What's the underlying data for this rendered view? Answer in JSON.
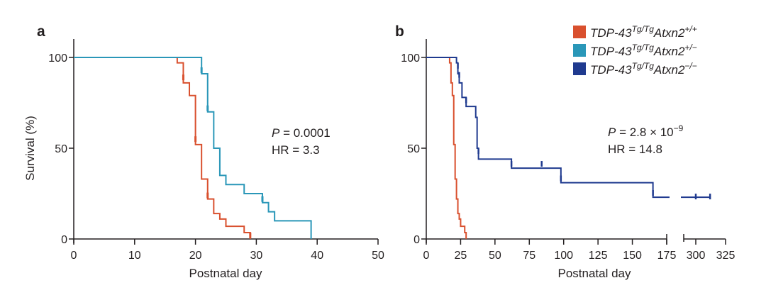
{
  "colors": {
    "wt": "#d9502e",
    "het": "#2a97b8",
    "ko": "#1f3a8f",
    "axis": "#231f20"
  },
  "legend": [
    {
      "key": "wt",
      "base": "TDP-43",
      "sup1": "Tg/Tg",
      "gene": "Atxn2",
      "sup2": "+/+"
    },
    {
      "key": "het",
      "base": "TDP-43",
      "sup1": "Tg/Tg",
      "gene": "Atxn2",
      "sup2": "+/−"
    },
    {
      "key": "ko",
      "base": "TDP-43",
      "sup1": "Tg/Tg",
      "gene": "Atxn2",
      "sup2": "−/−"
    }
  ],
  "chart_data": [
    {
      "panel": "a",
      "type": "line",
      "step": true,
      "title": "",
      "xlabel": "Postnatal day",
      "ylabel": "Survival (%)",
      "xlim": [
        0,
        50
      ],
      "ylim": [
        0,
        100
      ],
      "xticks": [
        0,
        10,
        20,
        30,
        40,
        50
      ],
      "yticks": [
        0,
        50,
        100
      ],
      "grid": false,
      "annotation": {
        "p_label": "P",
        "p_value": " = 0.0001",
        "hr": "HR = 3.3"
      },
      "series": [
        {
          "name": "TDP-43 Tg/Tg Atxn2 +/+",
          "key": "wt",
          "x": [
            0,
            17,
            18,
            19,
            20,
            21,
            22,
            23,
            24,
            25,
            28,
            29
          ],
          "y": [
            100,
            97,
            86,
            79,
            52,
            33,
            22,
            14,
            11,
            7,
            3.5,
            0
          ],
          "censored": [
            [
              18,
              89
            ],
            [
              20,
              55
            ],
            [
              22,
              24
            ],
            [
              29,
              2
            ]
          ]
        },
        {
          "name": "TDP-43 Tg/Tg Atxn2 +/−",
          "key": "het",
          "x": [
            0,
            21,
            22,
            23,
            24,
            25,
            28,
            31,
            32,
            33,
            39
          ],
          "y": [
            100,
            91,
            70,
            50,
            35,
            30,
            25,
            20,
            15,
            10,
            0
          ],
          "censored": [
            [
              21,
              93
            ],
            [
              22,
              72
            ],
            [
              31,
              22
            ]
          ]
        }
      ]
    },
    {
      "panel": "b",
      "type": "line",
      "step": true,
      "title": "",
      "xlabel": "Postnatal day",
      "ylabel": "",
      "xlim": [
        0,
        325
      ],
      "axis_break": [
        178,
        290
      ],
      "ylim": [
        0,
        100
      ],
      "xticks": [
        0,
        25,
        50,
        75,
        100,
        125,
        150,
        175,
        300,
        325
      ],
      "yticks": [
        0,
        50,
        100
      ],
      "grid": false,
      "annotation": {
        "p_label": "P",
        "p_value": " = 2.8 × 10",
        "p_exp": "−9",
        "hr": "HR = 14.8"
      },
      "series": [
        {
          "name": "TDP-43 Tg/Tg Atxn2 +/+",
          "key": "wt",
          "x": [
            0,
            17,
            18,
            19,
            20,
            21,
            22,
            23,
            24,
            25,
            28,
            29
          ],
          "y": [
            100,
            97,
            86,
            79,
            52,
            33,
            22,
            14,
            11,
            7,
            3.5,
            0
          ],
          "censored": []
        },
        {
          "name": "TDP-43 Tg/Tg Atxn2 −/−",
          "key": "ko",
          "x": [
            0,
            22,
            23,
            24,
            26,
            29,
            36,
            37,
            38,
            62,
            98,
            165
          ],
          "y": [
            100,
            97,
            91,
            86,
            78,
            73,
            67,
            50,
            44,
            39,
            31,
            23
          ],
          "end_x": 312,
          "censored": [
            [
              23,
              95
            ],
            [
              24,
              90
            ],
            [
              29,
              76
            ],
            [
              38,
              48
            ],
            [
              62,
              41
            ],
            [
              84,
              41
            ],
            [
              98,
              33
            ],
            [
              165,
              25
            ],
            [
              300,
              23
            ],
            [
              312,
              23
            ]
          ]
        }
      ]
    }
  ]
}
